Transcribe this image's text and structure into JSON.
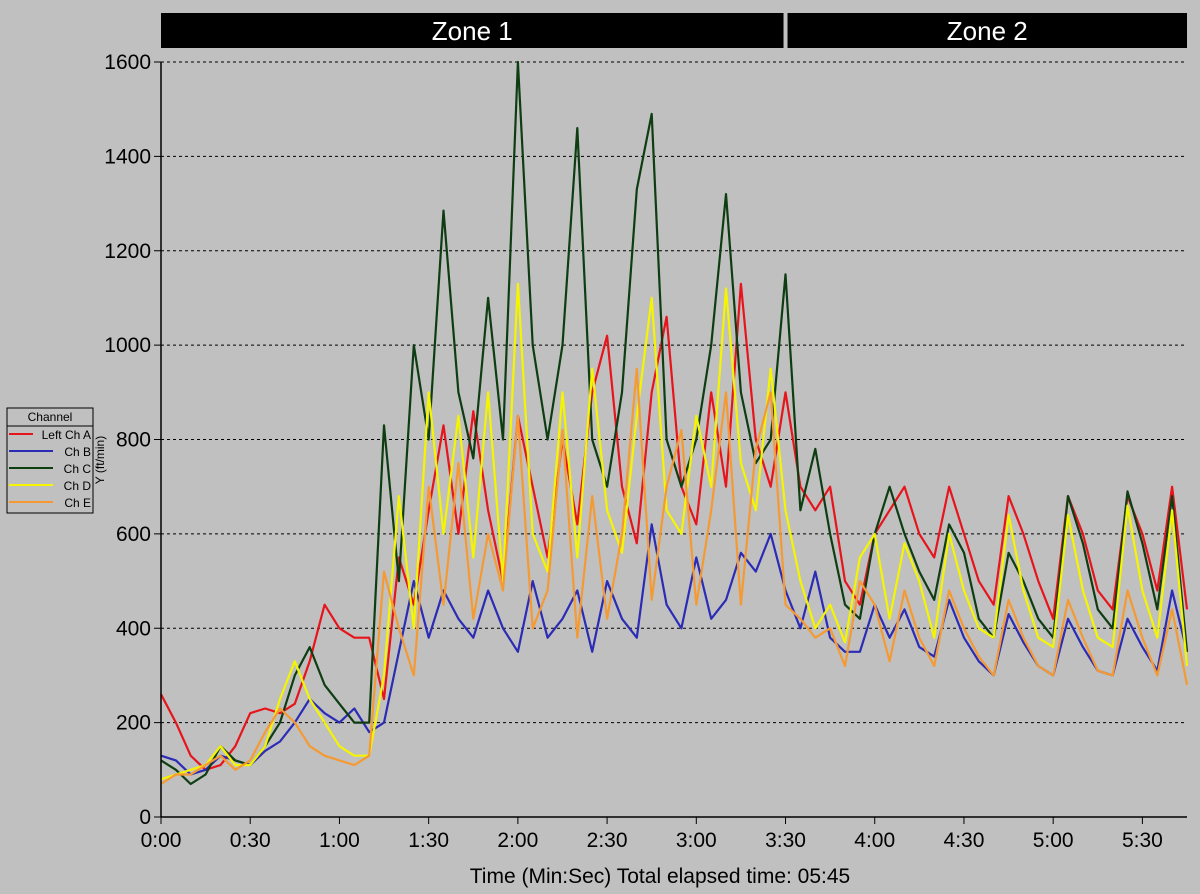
{
  "chart_data": {
    "type": "line",
    "title": "",
    "xlabel": "Time (Min:Sec) Total elapsed time: 05:45",
    "ylabel": "Y (ft/min)",
    "xlim_seconds": [
      0,
      345
    ],
    "ylim": [
      0,
      1600
    ],
    "grid": "horizontal dashed",
    "y_ticks": [
      "0",
      "200",
      "400",
      "600",
      "800",
      "1000",
      "1200",
      "1400",
      "1600"
    ],
    "x_ticks": [
      "0:00",
      "0:30",
      "1:00",
      "1:30",
      "2:00",
      "2:30",
      "3:00",
      "3:30",
      "4:00",
      "4:30",
      "5:00",
      "5:30"
    ],
    "zones": [
      {
        "label": "Zone 1",
        "start_seconds": 0,
        "end_seconds": 210
      },
      {
        "label": "Zone 2",
        "start_seconds": 210,
        "end_seconds": 345
      }
    ],
    "legend": {
      "title": "Channel",
      "placement": "left"
    },
    "x_seconds": [
      0,
      5,
      10,
      15,
      20,
      25,
      30,
      35,
      40,
      45,
      50,
      55,
      60,
      65,
      70,
      75,
      80,
      85,
      90,
      95,
      100,
      105,
      110,
      115,
      120,
      125,
      130,
      135,
      140,
      145,
      150,
      155,
      160,
      165,
      170,
      175,
      180,
      185,
      190,
      195,
      200,
      205,
      210,
      215,
      220,
      225,
      230,
      235,
      240,
      245,
      250,
      255,
      260,
      265,
      270,
      275,
      280,
      285,
      290,
      295,
      300,
      305,
      310,
      315,
      320,
      325,
      330,
      335,
      340,
      345
    ],
    "series": [
      {
        "name": "Left Ch A",
        "color": "#e8141c",
        "values": [
          260,
          200,
          130,
          100,
          110,
          150,
          220,
          230,
          220,
          240,
          330,
          450,
          400,
          380,
          380,
          250,
          550,
          450,
          650,
          830,
          600,
          860,
          650,
          500,
          850,
          700,
          550,
          800,
          620,
          900,
          1020,
          700,
          580,
          900,
          1060,
          700,
          620,
          900,
          700,
          1130,
          800,
          700,
          900,
          700,
          650,
          700,
          500,
          450,
          600,
          650,
          700,
          600,
          550,
          700,
          600,
          500,
          450,
          680,
          600,
          500,
          420,
          680,
          600,
          480,
          440,
          680,
          600,
          480,
          700,
          440
        ]
      },
      {
        "name": "Ch B",
        "color": "#2b2bb5",
        "values": [
          130,
          120,
          90,
          100,
          130,
          120,
          110,
          140,
          160,
          200,
          250,
          220,
          200,
          230,
          180,
          200,
          350,
          500,
          380,
          480,
          420,
          380,
          480,
          400,
          350,
          500,
          380,
          420,
          480,
          350,
          500,
          420,
          380,
          620,
          450,
          400,
          550,
          420,
          460,
          560,
          520,
          600,
          480,
          400,
          520,
          380,
          350,
          350,
          450,
          380,
          440,
          360,
          340,
          460,
          380,
          330,
          300,
          430,
          370,
          320,
          300,
          420,
          360,
          310,
          300,
          420,
          360,
          310,
          480,
          350
        ]
      },
      {
        "name": "Ch C",
        "color": "#0f3d12",
        "values": [
          120,
          100,
          70,
          90,
          150,
          120,
          110,
          150,
          200,
          300,
          360,
          280,
          240,
          200,
          200,
          830,
          500,
          1000,
          800,
          1285,
          900,
          760,
          1100,
          800,
          1600,
          1000,
          800,
          1000,
          1460,
          800,
          700,
          900,
          1330,
          1490,
          800,
          700,
          800,
          1000,
          1320,
          900,
          750,
          800,
          1150,
          650,
          780,
          600,
          450,
          420,
          600,
          700,
          600,
          520,
          460,
          620,
          560,
          420,
          380,
          560,
          500,
          420,
          380,
          680,
          580,
          440,
          400,
          690,
          580,
          440,
          680,
          350
        ]
      },
      {
        "name": "Ch D",
        "color": "#f5f500",
        "values": [
          80,
          90,
          100,
          110,
          150,
          110,
          110,
          150,
          250,
          330,
          250,
          200,
          150,
          130,
          130,
          300,
          680,
          400,
          900,
          600,
          850,
          550,
          900,
          500,
          1130,
          600,
          520,
          900,
          550,
          950,
          650,
          560,
          850,
          1100,
          650,
          600,
          850,
          700,
          1120,
          750,
          650,
          950,
          650,
          500,
          400,
          450,
          370,
          550,
          600,
          420,
          580,
          500,
          380,
          600,
          480,
          400,
          380,
          640,
          480,
          380,
          360,
          640,
          480,
          380,
          360,
          660,
          480,
          380,
          650,
          320
        ]
      },
      {
        "name": "Ch E",
        "color": "#f59a32",
        "values": [
          70,
          90,
          90,
          110,
          130,
          100,
          120,
          180,
          230,
          200,
          150,
          130,
          120,
          110,
          130,
          520,
          400,
          300,
          700,
          450,
          750,
          420,
          600,
          480,
          850,
          400,
          480,
          820,
          380,
          680,
          420,
          600,
          950,
          460,
          700,
          820,
          450,
          650,
          900,
          450,
          780,
          900,
          450,
          420,
          380,
          400,
          320,
          500,
          450,
          330,
          480,
          380,
          320,
          480,
          400,
          340,
          300,
          460,
          380,
          320,
          300,
          460,
          380,
          310,
          300,
          480,
          380,
          300,
          440,
          280
        ]
      }
    ]
  }
}
